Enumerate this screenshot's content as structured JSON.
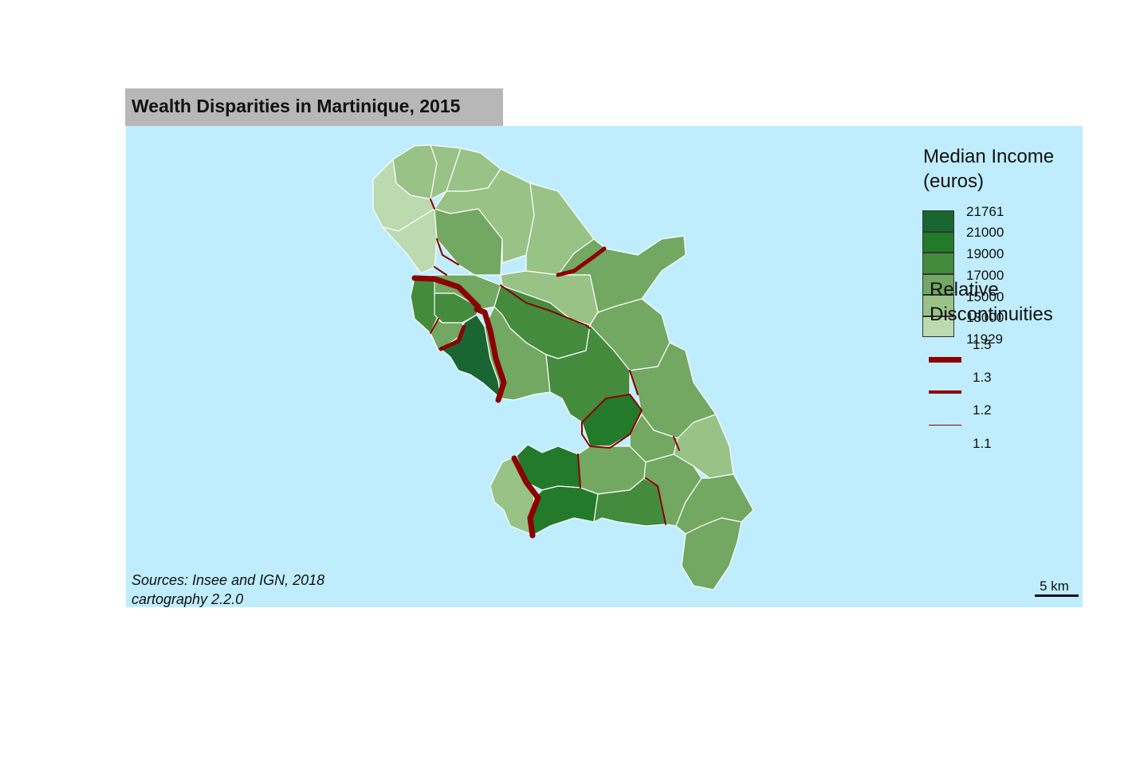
{
  "title": "Wealth Disparities in Martinique, 2015",
  "sources": [
    "Sources: Insee and IGN, 2018",
    "cartography 2.2.0"
  ],
  "scale_bar": {
    "label": "5 km"
  },
  "colors": {
    "sea": "#bfedfd",
    "title_bg": "#b7b7b7",
    "discontinuity": "#8b0000",
    "border": "#ffffff",
    "palette": [
      "#1a6633",
      "#237a2a",
      "#448b3e",
      "#72a862",
      "#98c286",
      "#bcdab0"
    ]
  },
  "legend_choro": {
    "title_lines": [
      "Median Income",
      "(euros)"
    ],
    "breaks": [
      "21761",
      "21000",
      "19000",
      "17000",
      "15000",
      "13000",
      "11929"
    ]
  },
  "legend_disc": {
    "title_lines": [
      "Relative",
      "Discontinuities"
    ],
    "values": [
      "1.5",
      "1.3",
      "1.2",
      "1.1"
    ]
  }
}
